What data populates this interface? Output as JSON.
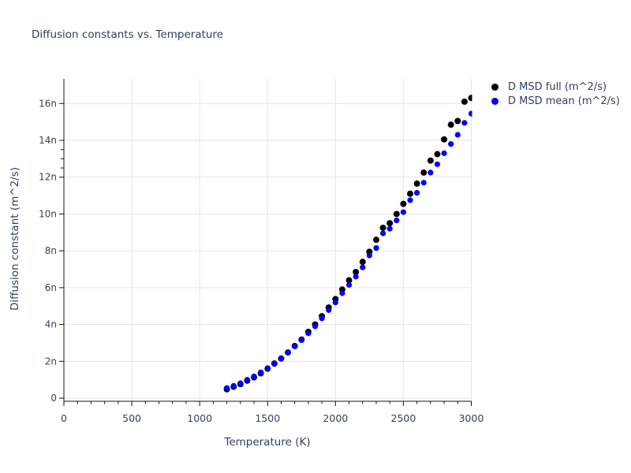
{
  "title": "Diffusion constants vs. Temperature",
  "colors": {
    "background": "#ffffff",
    "title_text": "#2d3f5e",
    "axis_text": "#33415e",
    "grid_line": "#e6e6e6",
    "axis_line": "#141414",
    "series_full": "#000000",
    "series_mean": "#0000ff"
  },
  "legend": {
    "items": [
      {
        "label": "D MSD full (m^2/s)",
        "color": "#000000"
      },
      {
        "label": "D MSD mean (m^2/s)",
        "color": "#0000ff"
      }
    ]
  },
  "chart_data": {
    "type": "scatter",
    "title": "Diffusion constants vs. Temperature",
    "xlabel": "Temperature (K)",
    "ylabel": "Diffusion constant (m^2/s)",
    "grid": "on",
    "legend_position": "top-right-outside",
    "xlim": [
      0,
      3000
    ],
    "ylim": [
      -0.17,
      17.34
    ],
    "y_unit": "n",
    "x_ticks": [
      0,
      500,
      1000,
      1500,
      2000,
      2500,
      3000
    ],
    "x_tick_labels": [
      "0",
      "500",
      "1000",
      "1500",
      "2000",
      "2500",
      "3000"
    ],
    "x_minor_tick_step": 100,
    "y_ticks": [
      0,
      2,
      4,
      6,
      8,
      10,
      12,
      14,
      16
    ],
    "y_tick_labels": [
      "0",
      "2n",
      "4n",
      "6n",
      "8n",
      "10n",
      "12n",
      "14n",
      "16n"
    ],
    "y_minor_ticks": [
      12.5,
      13,
      13.5
    ],
    "x": [
      1200,
      1250,
      1300,
      1350,
      1400,
      1450,
      1500,
      1550,
      1600,
      1650,
      1700,
      1750,
      1800,
      1850,
      1900,
      1950,
      2000,
      2050,
      2100,
      2150,
      2200,
      2250,
      2300,
      2350,
      2400,
      2450,
      2500,
      2550,
      2600,
      2650,
      2700,
      2750,
      2800,
      2850,
      2900,
      2950,
      3000
    ],
    "series": [
      {
        "name": "D MSD full (m^2/s)",
        "color": "#000000",
        "marker_radius": 4,
        "values": [
          0.48,
          0.62,
          0.76,
          0.95,
          1.13,
          1.35,
          1.6,
          1.88,
          2.15,
          2.48,
          2.83,
          3.18,
          3.6,
          4.0,
          4.45,
          4.92,
          5.38,
          5.9,
          6.4,
          6.85,
          7.4,
          7.95,
          8.6,
          9.25,
          9.5,
          10.0,
          10.55,
          11.1,
          11.65,
          12.25,
          12.9,
          13.25,
          14.05,
          14.85,
          15.05,
          16.1,
          16.3
        ]
      },
      {
        "name": "D MSD mean (m^2/s)",
        "color": "#0000ff",
        "marker_radius": 3.6,
        "values": [
          0.55,
          0.67,
          0.81,
          1.0,
          1.18,
          1.4,
          1.63,
          1.9,
          2.16,
          2.49,
          2.82,
          3.15,
          3.52,
          3.9,
          4.33,
          4.78,
          5.2,
          5.7,
          6.15,
          6.6,
          7.1,
          7.75,
          8.15,
          8.95,
          9.2,
          9.65,
          10.1,
          10.75,
          11.15,
          11.7,
          12.25,
          12.7,
          13.3,
          13.8,
          14.3,
          14.95,
          15.45
        ]
      }
    ]
  }
}
